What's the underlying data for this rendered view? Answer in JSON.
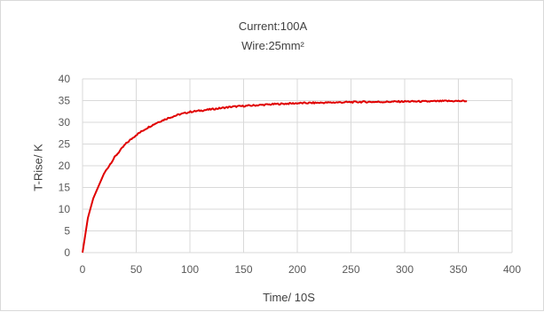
{
  "chart_data": {
    "type": "line",
    "title": "Current:100A",
    "subtitle": "Wire:25mm²",
    "xlabel": "Time/ 10S",
    "ylabel": "T-Rise/ K",
    "xlim": [
      0,
      400
    ],
    "ylim": [
      0,
      40
    ],
    "x_ticks": [
      0,
      50,
      100,
      150,
      200,
      250,
      300,
      350,
      400
    ],
    "y_ticks": [
      0,
      5,
      10,
      15,
      20,
      25,
      30,
      35,
      40
    ],
    "grid": true,
    "legend": "none",
    "series": [
      {
        "color": "#e00000",
        "x": [
          0,
          5,
          10,
          20,
          30,
          40,
          50,
          60,
          70,
          80,
          90,
          100,
          120,
          140,
          160,
          180,
          200,
          220,
          240,
          260,
          280,
          300,
          320,
          340,
          358
        ],
        "y": [
          0,
          8,
          12.5,
          18.2,
          22.0,
          25.0,
          27.1,
          28.7,
          30.0,
          31.0,
          31.8,
          32.4,
          33.0,
          33.6,
          33.9,
          34.2,
          34.4,
          34.5,
          34.6,
          34.7,
          34.7,
          34.8,
          34.8,
          34.9,
          34.9
        ]
      }
    ]
  }
}
